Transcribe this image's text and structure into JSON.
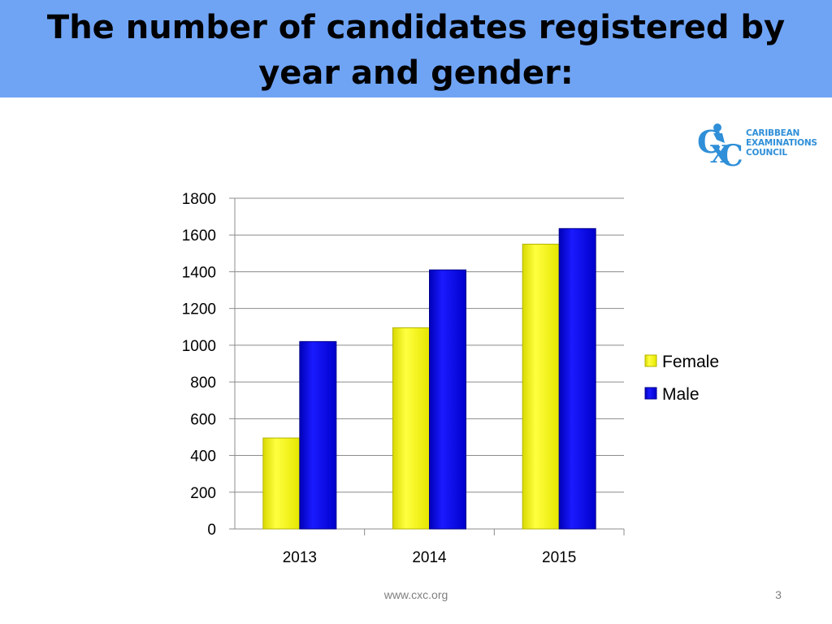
{
  "slide": {
    "title_line1": "The number of candidates registered by",
    "title_line2": "year and gender:",
    "footer_url": "www.cxc.org",
    "page_number": "3",
    "title_bar_color": "#6fa4f5"
  },
  "logo": {
    "icon": "cxc-logo-icon",
    "lines": [
      "CARIBBEAN",
      "EXAMINATIONS",
      "COUNCIL"
    ],
    "color": "#2f8fd8"
  },
  "chart_data": {
    "type": "bar",
    "title": "",
    "xlabel": "",
    "ylabel": "",
    "categories": [
      "2013",
      "2014",
      "2015"
    ],
    "series": [
      {
        "name": "Female",
        "color": "#ffff00",
        "values": [
          495,
          1095,
          1550
        ]
      },
      {
        "name": "Male",
        "color": "#0000ff",
        "values": [
          1020,
          1410,
          1635
        ]
      }
    ],
    "ylim": [
      0,
      1800
    ],
    "yticks": [
      0,
      200,
      400,
      600,
      800,
      1000,
      1200,
      1400,
      1600,
      1800
    ],
    "grid": true,
    "legend": "right"
  }
}
